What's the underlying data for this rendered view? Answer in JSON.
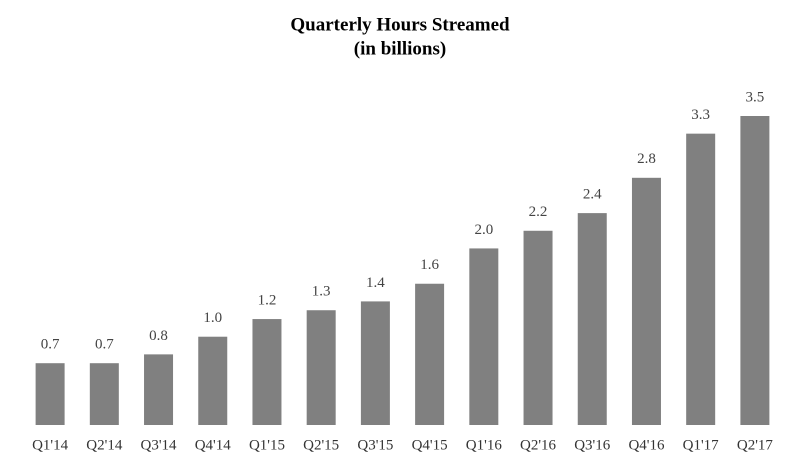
{
  "chart_data": {
    "type": "bar",
    "title": "Quarterly Hours Streamed",
    "subtitle": "(in billions)",
    "categories": [
      "Q1'14",
      "Q2'14",
      "Q3'14",
      "Q4'14",
      "Q1'15",
      "Q2'15",
      "Q3'15",
      "Q4'15",
      "Q1'16",
      "Q2'16",
      "Q3'16",
      "Q4'16",
      "Q1'17",
      "Q2'17"
    ],
    "values": [
      0.7,
      0.7,
      0.8,
      1.0,
      1.2,
      1.3,
      1.4,
      1.6,
      2.0,
      2.2,
      2.4,
      2.8,
      3.3,
      3.5
    ],
    "value_labels": [
      "0.7",
      "0.7",
      "0.8",
      "1.0",
      "1.2",
      "1.3",
      "1.4",
      "1.6",
      "2.0",
      "2.2",
      "2.4",
      "2.8",
      "3.3",
      "3.5"
    ],
    "color": "#808080"
  }
}
